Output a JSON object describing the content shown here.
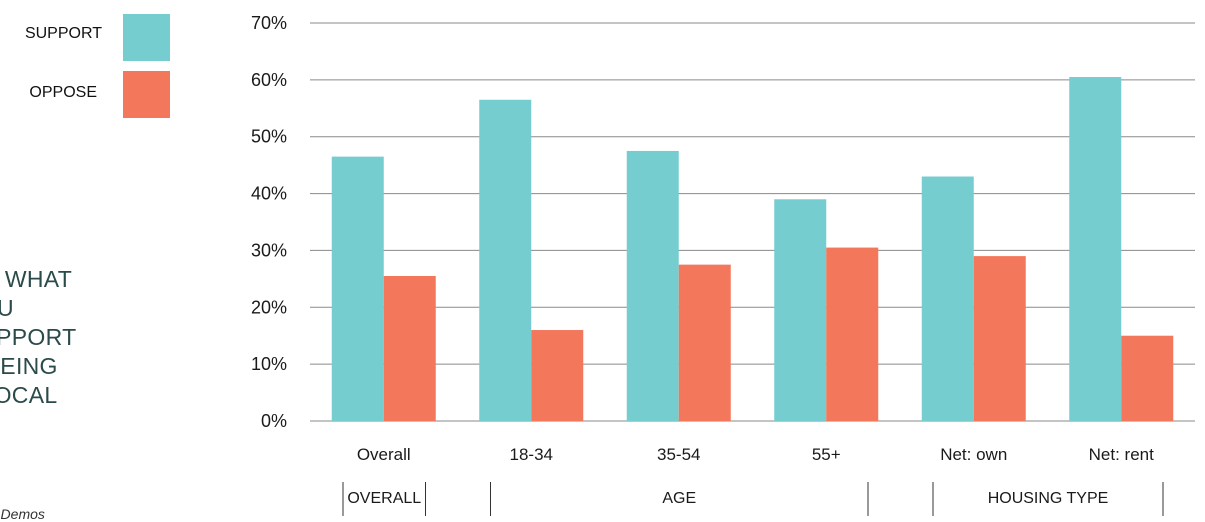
{
  "legend": [
    {
      "label": "SUPPORT",
      "color": "#76CDCF"
    },
    {
      "label": "OPPOSE",
      "color": "#F2775B"
    }
  ],
  "question": {
    "lines": [
      "L, TO WHAT",
      "D YOU",
      "R SUPPORT",
      "IES BEING",
      "UR LOCAL"
    ]
  },
  "source_text": "r Demos",
  "chart_data": {
    "type": "bar",
    "categories": [
      "Overall",
      "18-34",
      "35-54",
      "55+",
      "Net: own",
      "Net: rent"
    ],
    "series": [
      {
        "name": "SUPPORT",
        "color": "#76CDCF",
        "values": [
          46.5,
          56.5,
          47.5,
          39,
          43,
          60.5
        ]
      },
      {
        "name": "OPPOSE",
        "color": "#F2775B",
        "values": [
          25.5,
          16,
          27.5,
          30.5,
          29,
          15
        ]
      }
    ],
    "ylim": [
      0,
      70
    ],
    "yticks": [
      "0%",
      "10%",
      "20%",
      "30%",
      "40%",
      "50%",
      "60%",
      "70%"
    ],
    "ytick_values": [
      0,
      10,
      20,
      30,
      40,
      50,
      60,
      70
    ],
    "grid": true,
    "groups": [
      {
        "label": "OVERALL",
        "from": 0,
        "to": 0
      },
      {
        "label": "AGE",
        "from": 1,
        "to": 3
      },
      {
        "label": "HOUSING TYPE",
        "from": 4,
        "to": 5
      }
    ]
  }
}
